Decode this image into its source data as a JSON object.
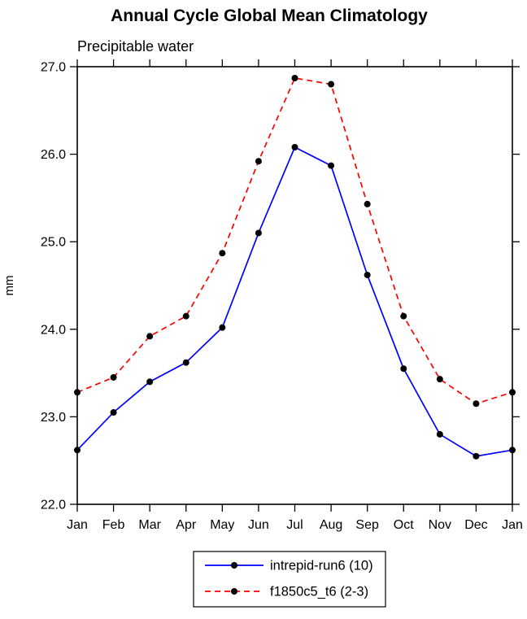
{
  "chart": {
    "title": "Annual Cycle Global Mean Climatology",
    "subtitle": "Precipitable water",
    "ylabel": "mm"
  },
  "colors": {
    "series1": "#0000ff",
    "series2": "#ff0000",
    "marker": "#000000",
    "axis": "#000000",
    "background": "#ffffff"
  },
  "chart_data": {
    "type": "line",
    "title": "Annual Cycle Global Mean Climatology",
    "subtitle": "Precipitable water",
    "xlabel": "",
    "ylabel": "mm",
    "categories": [
      "Jan",
      "Feb",
      "Mar",
      "Apr",
      "May",
      "Jun",
      "Jul",
      "Aug",
      "Sep",
      "Oct",
      "Nov",
      "Dec",
      "Jan"
    ],
    "ylim": [
      22.0,
      27.0
    ],
    "yticks": [
      22.0,
      23.0,
      24.0,
      25.0,
      26.0,
      27.0
    ],
    "ytick_labels": [
      "22.0",
      "23.0",
      "24.0",
      "25.0",
      "26.0",
      "27.0"
    ],
    "grid": false,
    "legend_position": "bottom",
    "marker": {
      "shape": "circle",
      "color": "#000000",
      "size": 4
    },
    "series": [
      {
        "name": "intrepid-run6 (10)",
        "color": "#0000ff",
        "style": "solid",
        "values": [
          22.62,
          23.05,
          23.4,
          23.62,
          24.02,
          25.1,
          26.08,
          25.87,
          24.62,
          23.55,
          22.8,
          22.55,
          22.62
        ]
      },
      {
        "name": "f1850c5_t6 (2-3)",
        "color": "#ff0000",
        "style": "dashed",
        "values": [
          23.28,
          23.45,
          23.92,
          24.15,
          24.87,
          25.92,
          26.87,
          26.8,
          25.43,
          24.15,
          23.43,
          23.15,
          23.28
        ]
      }
    ]
  }
}
